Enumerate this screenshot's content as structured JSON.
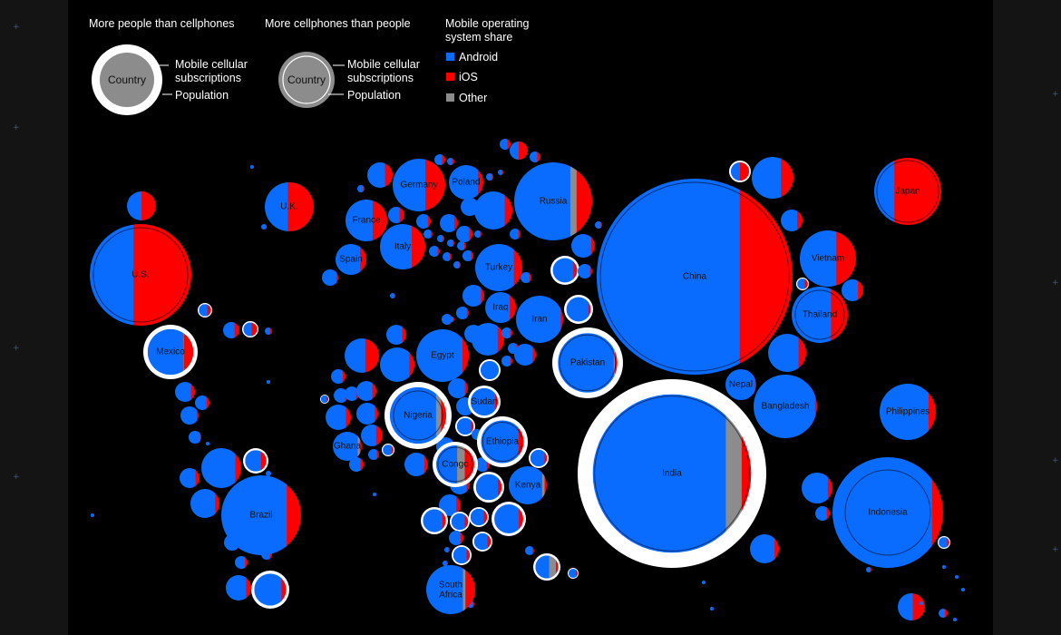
{
  "legend": {
    "more_people_heading": "More people than cellphones",
    "more_phones_heading": "More cellphones than people",
    "example_country": "Country",
    "subscriptions_label_line1": "Mobile cellular",
    "subscriptions_label_line2": "subscriptions",
    "population_label": "Population",
    "os_share_heading_line1": "Mobile operating",
    "os_share_heading_line2": "system share",
    "android_label": "Android",
    "ios_label": "iOS",
    "other_label": "Other"
  },
  "colors": {
    "android": "#0a6cff",
    "ios": "#ff0000",
    "other": "#8c8c8c",
    "background": "#000000",
    "ring": "#ffffff",
    "outer_frame": "#141414"
  },
  "chart_data": {
    "type": "bubble-map",
    "encoding": "Circle area ~ mobile subscriptions / population; fill split by mobile OS share (Android, iOS, Other)",
    "series": [
      "Android",
      "iOS",
      "Other"
    ],
    "labeled_countries": [
      {
        "name": "U.S.",
        "more_phones": false,
        "android": 0.43,
        "ios": 0.57,
        "other": 0.0
      },
      {
        "name": "Mexico",
        "more_phones": true,
        "android": 0.78,
        "ios": 0.21,
        "other": 0.01
      },
      {
        "name": "U.K.",
        "more_phones": false,
        "android": 0.47,
        "ios": 0.53,
        "other": 0.0
      },
      {
        "name": "France",
        "more_phones": false,
        "android": 0.65,
        "ios": 0.35,
        "other": 0.0
      },
      {
        "name": "Spain",
        "more_phones": false,
        "android": 0.8,
        "ios": 0.2,
        "other": 0.0
      },
      {
        "name": "Germany",
        "more_phones": false,
        "android": 0.62,
        "ios": 0.38,
        "other": 0.0
      },
      {
        "name": "Poland",
        "more_phones": false,
        "android": 0.84,
        "ios": 0.16,
        "other": 0.0
      },
      {
        "name": "Italy",
        "more_phones": false,
        "android": 0.7,
        "ios": 0.3,
        "other": 0.0
      },
      {
        "name": "Russia",
        "more_phones": false,
        "android": 0.72,
        "ios": 0.2,
        "other": 0.08
      },
      {
        "name": "Turkey",
        "more_phones": false,
        "android": 0.82,
        "ios": 0.18,
        "other": 0.0
      },
      {
        "name": "Iraq",
        "more_phones": false,
        "android": 0.8,
        "ios": 0.2,
        "other": 0.0
      },
      {
        "name": "Iran",
        "more_phones": false,
        "android": 0.95,
        "ios": 0.05,
        "other": 0.0
      },
      {
        "name": "Egypt",
        "more_phones": false,
        "android": 0.88,
        "ios": 0.12,
        "other": 0.0
      },
      {
        "name": "Nigeria",
        "more_phones": true,
        "android": 0.82,
        "ios": 0.09,
        "other": 0.09
      },
      {
        "name": "Sudan",
        "more_phones": true,
        "android": 0.9,
        "ios": 0.1,
        "other": 0.0
      },
      {
        "name": "Ghana",
        "more_phones": false,
        "android": 0.86,
        "ios": 0.07,
        "other": 0.07
      },
      {
        "name": "Ethiopia",
        "more_phones": true,
        "android": 0.88,
        "ios": 0.12,
        "other": 0.0
      },
      {
        "name": "Congo",
        "more_phones": true,
        "android": 0.55,
        "ios": 0.25,
        "other": 0.2
      },
      {
        "name": "Kenya",
        "more_phones": false,
        "android": 0.88,
        "ios": 0.06,
        "other": 0.06
      },
      {
        "name": "South Africa",
        "more_phones": false,
        "android": 0.75,
        "ios": 0.2,
        "other": 0.05
      },
      {
        "name": "Brazil",
        "more_phones": false,
        "android": 0.82,
        "ios": 0.18,
        "other": 0.0
      },
      {
        "name": "Pakistan",
        "more_phones": true,
        "android": 0.94,
        "ios": 0.04,
        "other": 0.02
      },
      {
        "name": "China",
        "more_phones": false,
        "android": 0.73,
        "ios": 0.27,
        "other": 0.0
      },
      {
        "name": "India",
        "more_phones": true,
        "android": 0.84,
        "ios": 0.06,
        "other": 0.1
      },
      {
        "name": "Nepal",
        "more_phones": false,
        "android": 0.96,
        "ios": 0.04,
        "other": 0.0
      },
      {
        "name": "Bangladesh",
        "more_phones": false,
        "android": 0.97,
        "ios": 0.03,
        "other": 0.0
      },
      {
        "name": "Thailand",
        "more_phones": false,
        "android": 0.7,
        "ios": 0.3,
        "other": 0.0
      },
      {
        "name": "Vietnam",
        "more_phones": false,
        "android": 0.65,
        "ios": 0.35,
        "other": 0.0
      },
      {
        "name": "Japan",
        "more_phones": false,
        "android": 0.3,
        "ios": 0.7,
        "other": 0.0
      },
      {
        "name": "Philippines",
        "more_phones": false,
        "android": 0.87,
        "ios": 0.13,
        "other": 0.0
      },
      {
        "name": "Indonesia",
        "more_phones": false,
        "android": 0.9,
        "ios": 0.1,
        "other": 0.0
      }
    ]
  }
}
